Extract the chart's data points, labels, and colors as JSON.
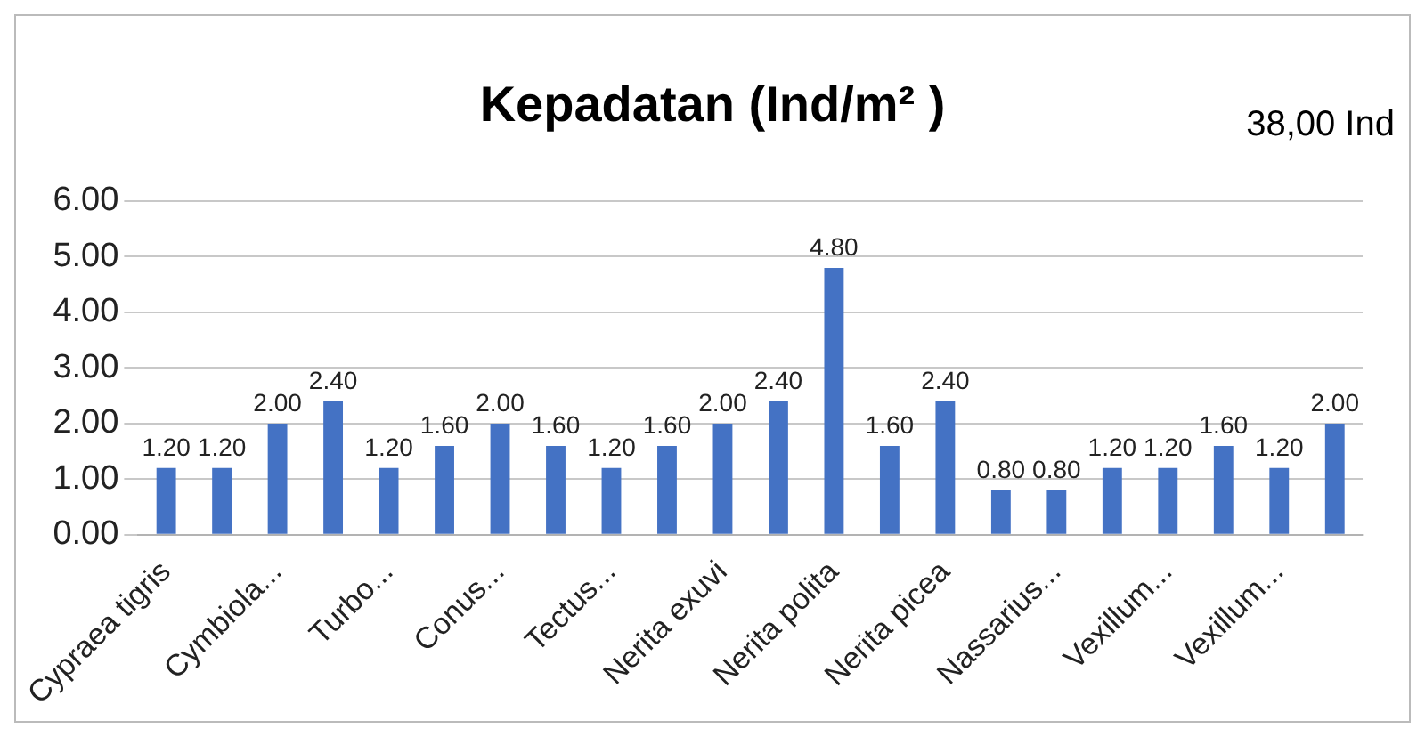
{
  "chart_data": {
    "type": "bar",
    "title": "Kepadatan (Ind/m² )",
    "annotations": [
      "38,00 Ind"
    ],
    "categories": [
      "Cypraea tigris",
      null,
      "Cymbiola...",
      null,
      "Turbo...",
      null,
      "Conus...",
      null,
      "Tectus...",
      null,
      "Nerita exuvi",
      null,
      "Nerita polita",
      null,
      "Nerita picea",
      null,
      "Nassarius...",
      null,
      "Vexillum...",
      null,
      "Vexillum...",
      null
    ],
    "values": [
      1.2,
      1.2,
      2.0,
      2.4,
      1.2,
      1.6,
      2.0,
      1.6,
      1.2,
      1.6,
      2.0,
      2.4,
      4.8,
      1.6,
      2.4,
      0.8,
      0.8,
      1.2,
      1.2,
      1.6,
      1.2,
      2.0
    ],
    "value_labels": [
      "1.20",
      "1.20",
      "2.00",
      "2.40",
      "1.20",
      "1.60",
      "2.00",
      "1.60",
      "1.20",
      "1.60",
      "2.00",
      "2.40",
      "4.80",
      "1.60",
      "2.40",
      "0.80",
      "0.80",
      "1.20",
      "1.20",
      "1.60",
      "1.20",
      "2.00"
    ],
    "color": "#4472c4",
    "ylim": [
      0,
      6
    ],
    "yticks": [
      {
        "value": 0,
        "label": "0.00"
      },
      {
        "value": 1,
        "label": "1.00"
      },
      {
        "value": 2,
        "label": "2.00"
      },
      {
        "value": 3,
        "label": "3.00"
      },
      {
        "value": 4,
        "label": "4.00"
      },
      {
        "value": 5,
        "label": "5.00"
      },
      {
        "value": 6,
        "label": "6.00"
      }
    ],
    "grid": "y",
    "legend": false
  }
}
